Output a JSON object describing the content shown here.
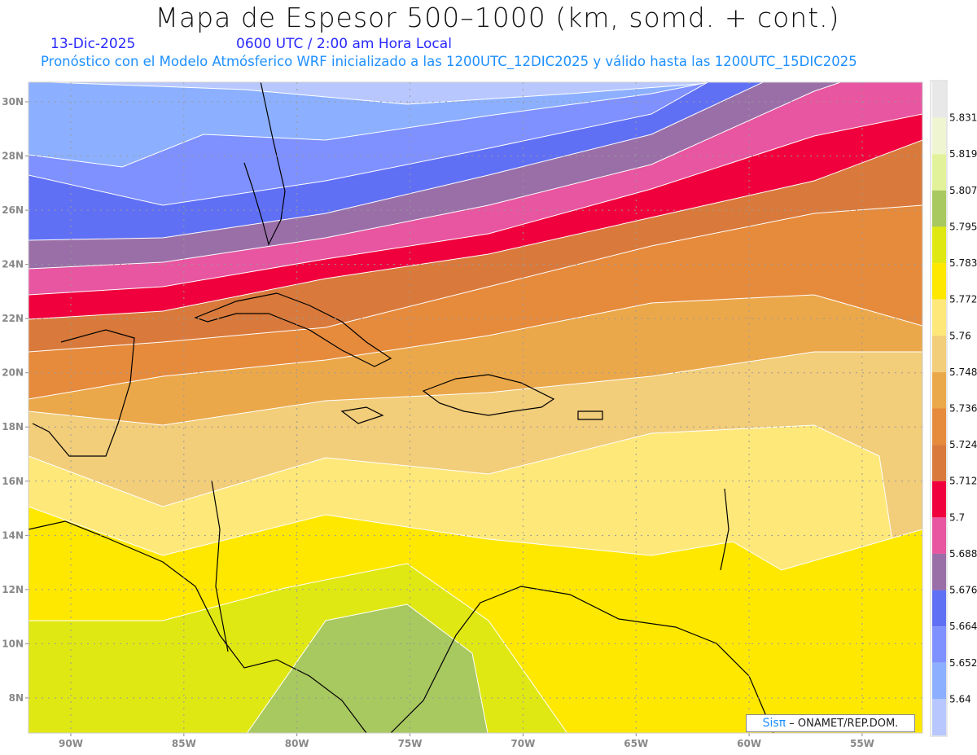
{
  "header": {
    "title": "Mapa de Espesor 500–1000 (km, somd. + cont.)",
    "date": "13-Dic-2025",
    "time": "0600 UTC / 2:00 am Hora Local",
    "description": "Pronóstico con el Modelo Atmósferico WRF inicializado a las 1200UTC_12DIC2025 y válido hasta las  1200UTC_15DIC2025"
  },
  "axes": {
    "lat_ticks": [
      "30N",
      "28N",
      "26N",
      "24N",
      "22N",
      "20N",
      "18N",
      "16N",
      "14N",
      "12N",
      "10N",
      "8N"
    ],
    "lon_ticks": [
      "90W",
      "85W",
      "80W",
      "75W",
      "70W",
      "65W",
      "60W",
      "55W"
    ]
  },
  "colorbar": {
    "labels": [
      "5.831",
      "5.819",
      "5.807",
      "5.795",
      "5.783",
      "5.772",
      "5.76",
      "5.748",
      "5.736",
      "5.724",
      "5.712",
      "5.7",
      "5.688",
      "5.676",
      "5.664",
      "5.652",
      "5.64"
    ],
    "colors": [
      "#e8e8e8",
      "#eef5d0",
      "#e2f29a",
      "#a8c860",
      "#e0e814",
      "#ffe800",
      "#ffe87a",
      "#f2cd7a",
      "#eba84a",
      "#e68a3c",
      "#d97a3c",
      "#f0003c",
      "#e855a0",
      "#9a6fa8",
      "#6070f5",
      "#7f90ff",
      "#8cb0ff",
      "#b8c8ff"
    ]
  },
  "logo": {
    "brand": "Sisπ",
    "text": "– ONAMET/REP.DOM."
  }
}
